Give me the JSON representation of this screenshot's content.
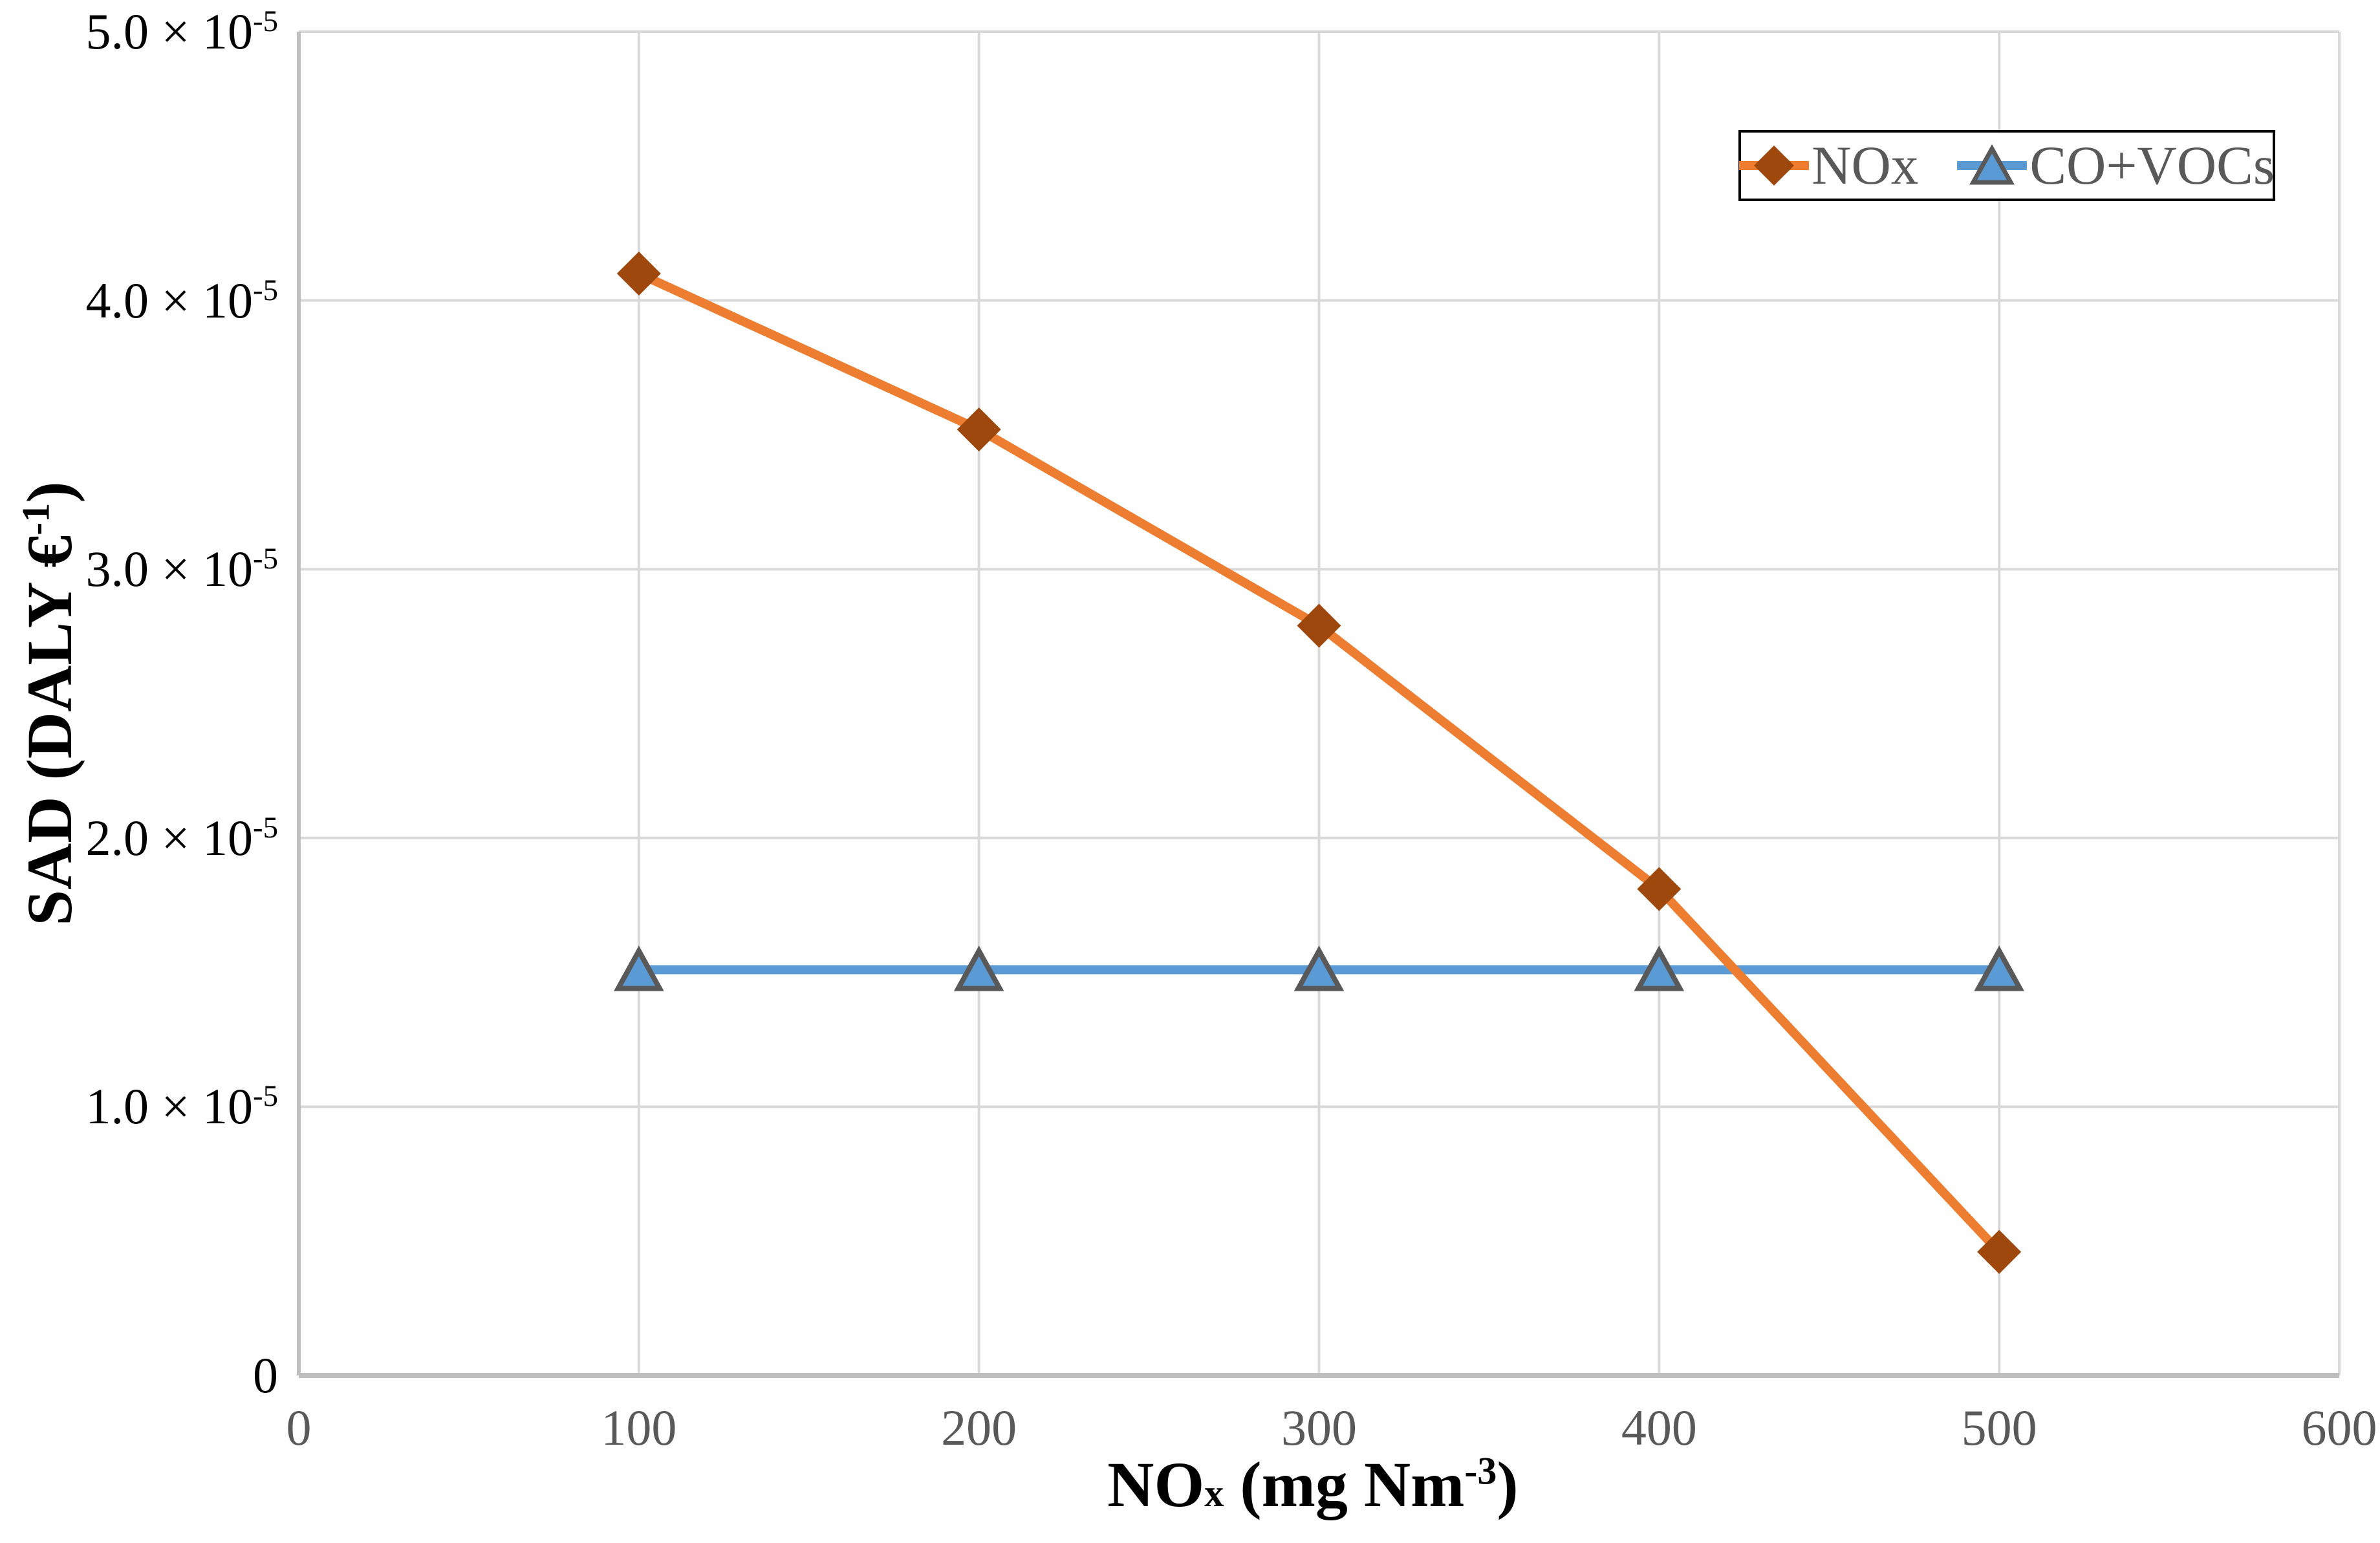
{
  "chart_data": {
    "type": "line",
    "x": [
      100,
      200,
      300,
      400,
      500
    ],
    "series": [
      {
        "name": "NOx",
        "line_color": "#ED7D31",
        "marker": "diamond",
        "marker_fill": "#9E480E",
        "marker_edge": "#9E480E",
        "values": [
          4.1e-05,
          3.52e-05,
          2.79e-05,
          1.81e-05,
          4.6e-06
        ]
      },
      {
        "name": "CO+VOCs",
        "line_color": "#5B9BD5",
        "marker": "triangle",
        "marker_fill": "#5B9BD5",
        "marker_edge": "#595959",
        "values": [
          1.51e-05,
          1.51e-05,
          1.51e-05,
          1.51e-05,
          1.51e-05
        ]
      }
    ],
    "xlim": [
      0,
      600
    ],
    "ylim": [
      0,
      5e-05
    ],
    "xticks": [
      0,
      100,
      200,
      300,
      400,
      500,
      600
    ],
    "yticks": [
      {
        "value": 0,
        "text": "0",
        "sup": ""
      },
      {
        "value": 1e-05,
        "text": "1.0 × 10",
        "sup": "-5"
      },
      {
        "value": 2e-05,
        "text": "2.0 × 10",
        "sup": "-5"
      },
      {
        "value": 3e-05,
        "text": "3.0 × 10",
        "sup": "-5"
      },
      {
        "value": 4e-05,
        "text": "4.0 × 10",
        "sup": "-5"
      },
      {
        "value": 5e-05,
        "text": "5.0 × 10",
        "sup": "-5"
      }
    ],
    "xlabel_parts": {
      "pre": "NO",
      "sub": "x",
      "mid": " (mg Nm",
      "sup": "-3",
      "post": ")"
    },
    "ylabel_parts": {
      "pre": "SAD (DALY €",
      "sup": "-1",
      "post": ")"
    },
    "xlabel_text": "NOx (mg Nm-3)",
    "ylabel_text": "SAD (DALY €-1)",
    "grid": true,
    "legend": {
      "position": "top-right",
      "entries": [
        "NOx",
        "CO+VOCs"
      ]
    },
    "colors": {
      "gridline": "#D9D9D9",
      "axis_line": "#BFBFBF",
      "x_tick_label": "#595959",
      "y_tick_label": "#000000",
      "axis_title": "#000000",
      "legend_text": "#595959",
      "legend_border": "#000000",
      "background": "#FFFFFF"
    }
  }
}
